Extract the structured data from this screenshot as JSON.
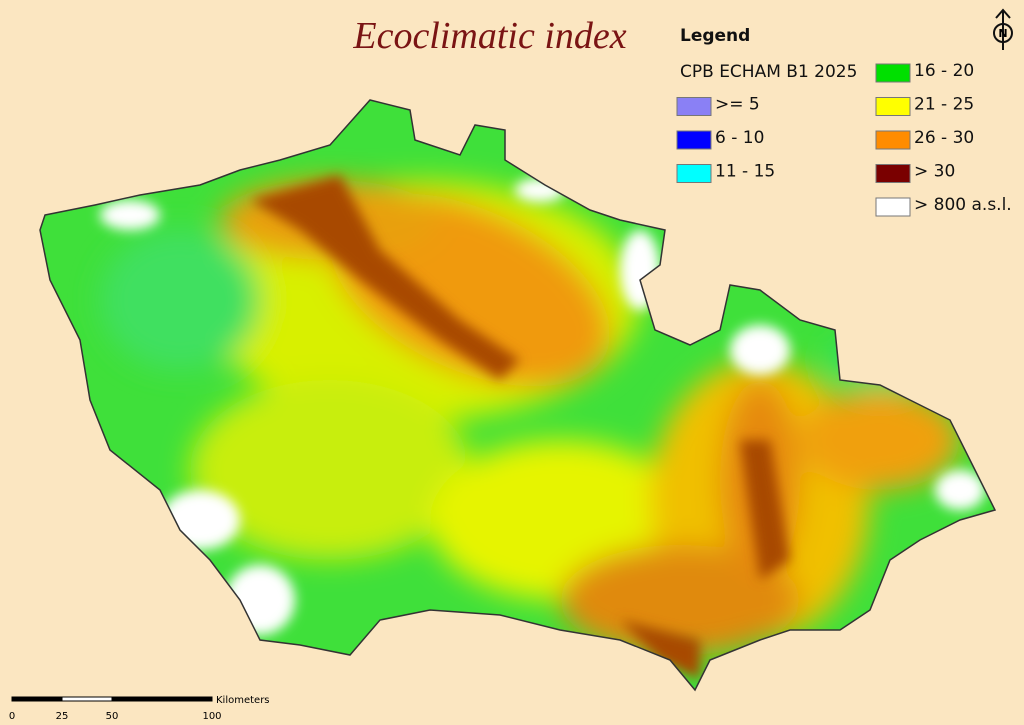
{
  "title": "Ecoclimatic index",
  "legend": {
    "title": "Legend",
    "subtitle": "CPB ECHAM B1 2025",
    "items": [
      {
        "label": ">= 5",
        "color": "#8a80f5"
      },
      {
        "label": "6 - 10",
        "color": "#0000ff"
      },
      {
        "label": "11 - 15",
        "color": "#00ffff"
      },
      {
        "label": "16 - 20",
        "color": "#00e000"
      },
      {
        "label": "21 - 25",
        "color": "#ffff00"
      },
      {
        "label": "26 - 30",
        "color": "#ff8c00"
      },
      {
        "label": "> 30",
        "color": "#7a0000"
      },
      {
        "label": "> 800 a.s.l.",
        "color": "#ffffff"
      }
    ]
  },
  "scale_bar": {
    "unit": "Kilometers",
    "ticks": [
      0,
      25,
      50,
      100
    ]
  },
  "north_arrow": "N"
}
